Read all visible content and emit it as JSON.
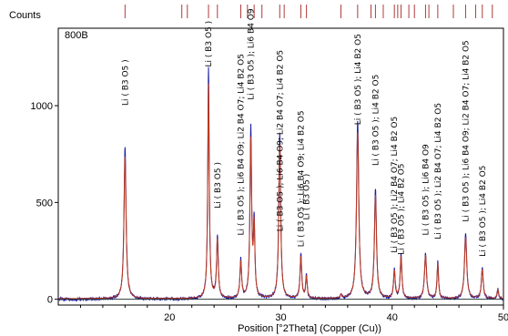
{
  "chart_data": {
    "type": "line",
    "sample_label": "800B",
    "ylabel": "Counts",
    "xlabel": "Position [°2Theta] (Copper (Cu))",
    "xlim": [
      10,
      50
    ],
    "ylim": [
      -30,
      1400
    ],
    "x_ticks": [
      20,
      30,
      40,
      50
    ],
    "y_ticks": [
      0,
      500,
      1000
    ],
    "grid": false,
    "colors": {
      "observed": "#1b1b9c",
      "calculated": "#c0391b",
      "reference_sticks": "#b03a3a",
      "axes": "#000000",
      "baseline": "#2e3a3a"
    },
    "reference_peak_positions": [
      16.0,
      21.1,
      21.6,
      23.5,
      24.3,
      26.4,
      27.0,
      27.6,
      28.3,
      29.9,
      30.3,
      31.8,
      32.3,
      35.4,
      36.9,
      38.1,
      38.5,
      39.2,
      40.2,
      40.5,
      40.8,
      41.5,
      42.0,
      43.0,
      43.3,
      44.1,
      45.5,
      46.6,
      47.5,
      48.1,
      49.0
    ],
    "peaks": [
      {
        "x": 16.0,
        "y": 790,
        "w": 0.11
      },
      {
        "x": 23.5,
        "y": 1190,
        "w": 0.08
      },
      {
        "x": 24.3,
        "y": 320,
        "w": 0.09
      },
      {
        "x": 26.4,
        "y": 200,
        "w": 0.09
      },
      {
        "x": 27.3,
        "y": 870,
        "w": 0.09
      },
      {
        "x": 27.6,
        "y": 380,
        "w": 0.08
      },
      {
        "x": 29.9,
        "y": 860,
        "w": 0.1
      },
      {
        "x": 31.8,
        "y": 230,
        "w": 0.09
      },
      {
        "x": 32.3,
        "y": 120,
        "w": 0.08
      },
      {
        "x": 35.4,
        "y": 20,
        "w": 0.08
      },
      {
        "x": 36.9,
        "y": 920,
        "w": 0.12
      },
      {
        "x": 38.5,
        "y": 570,
        "w": 0.11
      },
      {
        "x": 40.2,
        "y": 150,
        "w": 0.09
      },
      {
        "x": 40.8,
        "y": 230,
        "w": 0.09
      },
      {
        "x": 43.0,
        "y": 240,
        "w": 0.11
      },
      {
        "x": 44.1,
        "y": 190,
        "w": 0.08
      },
      {
        "x": 46.6,
        "y": 340,
        "w": 0.12
      },
      {
        "x": 48.1,
        "y": 160,
        "w": 0.1
      },
      {
        "x": 49.5,
        "y": 50,
        "w": 0.08
      }
    ],
    "annotations": [
      {
        "x": 16.0,
        "label_y": 1000,
        "text": "Li ( B3 O5 )"
      },
      {
        "x": 23.5,
        "label_y": 1200,
        "text": "Li ( B3 O5 )"
      },
      {
        "x": 24.3,
        "label_y": 470,
        "text": "Li ( B3 O5 )"
      },
      {
        "x": 26.4,
        "label_y": 330,
        "text": "Li ( B3 O5 ); Li6 B4 O9; Li2 B4 O7; Li4 B2 O5"
      },
      {
        "x": 27.3,
        "label_y": 1030,
        "text": "Li ( B3 O5 ); Li6 B4 O9"
      },
      {
        "x": 29.9,
        "label_y": 350,
        "text": "Li ( B3 O5 ); Li6 B4 O9; Li2 B4 O7; Li4 B2 O5"
      },
      {
        "x": 31.8,
        "label_y": 270,
        "text": "Li ( B3 O5 ); Li6 B4 O9; Li4 B2 O5"
      },
      {
        "x": 32.3,
        "label_y": 410,
        "text": "Li ( B3 O5 )"
      },
      {
        "x": 36.9,
        "label_y": 900,
        "text": "Li ( B3 O5 ); Li4 B2 O5"
      },
      {
        "x": 38.5,
        "label_y": 690,
        "text": "Li ( B3 O5 ); Li4 B2 O5"
      },
      {
        "x": 40.2,
        "label_y": 240,
        "text": "Li ( B3 O5 ); Li2 B4 O7; Li4 B2 O5"
      },
      {
        "x": 40.8,
        "label_y": 230,
        "text": "Li ( B3 O5 ); Li4 B2 O5"
      },
      {
        "x": 43.0,
        "label_y": 330,
        "text": "Li ( B3 O5 ); Li6 B4 O9"
      },
      {
        "x": 44.1,
        "label_y": 310,
        "text": "Li ( B3 O5 ); Li2 B4 O7; Li4 B2 O5"
      },
      {
        "x": 46.6,
        "label_y": 400,
        "text": "Li ( B3 O5 ); Li6 B4 O9; Li2 B4 O7; Li4 B2 O5"
      },
      {
        "x": 48.1,
        "label_y": 220,
        "text": "Li ( B3 O5 ); Li4 B2 O5"
      }
    ]
  }
}
